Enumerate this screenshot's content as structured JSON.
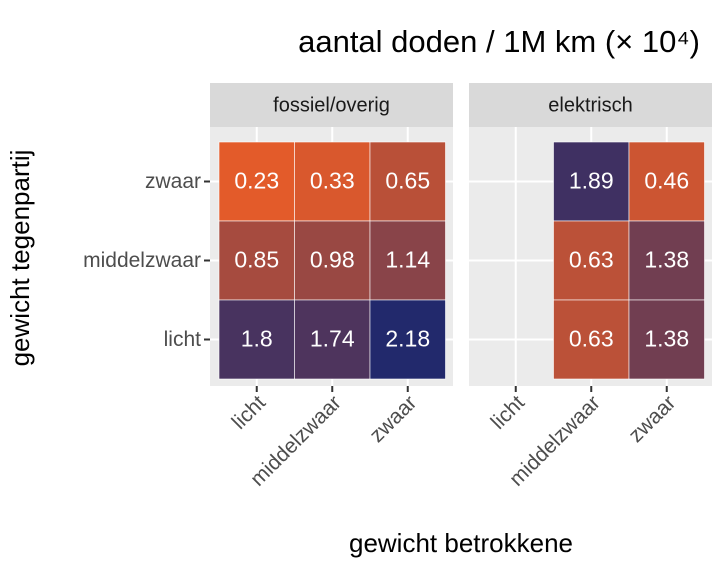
{
  "chart_data": {
    "type": "heatmap",
    "title": "aantal doden / 1M km (× 10⁴)",
    "xlabel": "gewicht betrokkene",
    "ylabel": "gewicht tegenpartij",
    "x_categories": [
      "licht",
      "middelzwaar",
      "zwaar"
    ],
    "y_categories": [
      "zwaar",
      "middelzwaar",
      "licht"
    ],
    "facets": [
      {
        "name": "fossiel/overig",
        "values": [
          [
            0.23,
            0.33,
            0.65
          ],
          [
            0.85,
            0.98,
            1.14
          ],
          [
            1.8,
            1.74,
            2.18
          ]
        ]
      },
      {
        "name": "elektrisch",
        "values": [
          [
            null,
            1.89,
            0.46
          ],
          [
            null,
            0.63,
            1.38
          ],
          [
            null,
            0.63,
            1.38
          ]
        ]
      }
    ],
    "colors": {
      "low": "#e35b2a",
      "high": "#22296c"
    },
    "grid": true
  }
}
